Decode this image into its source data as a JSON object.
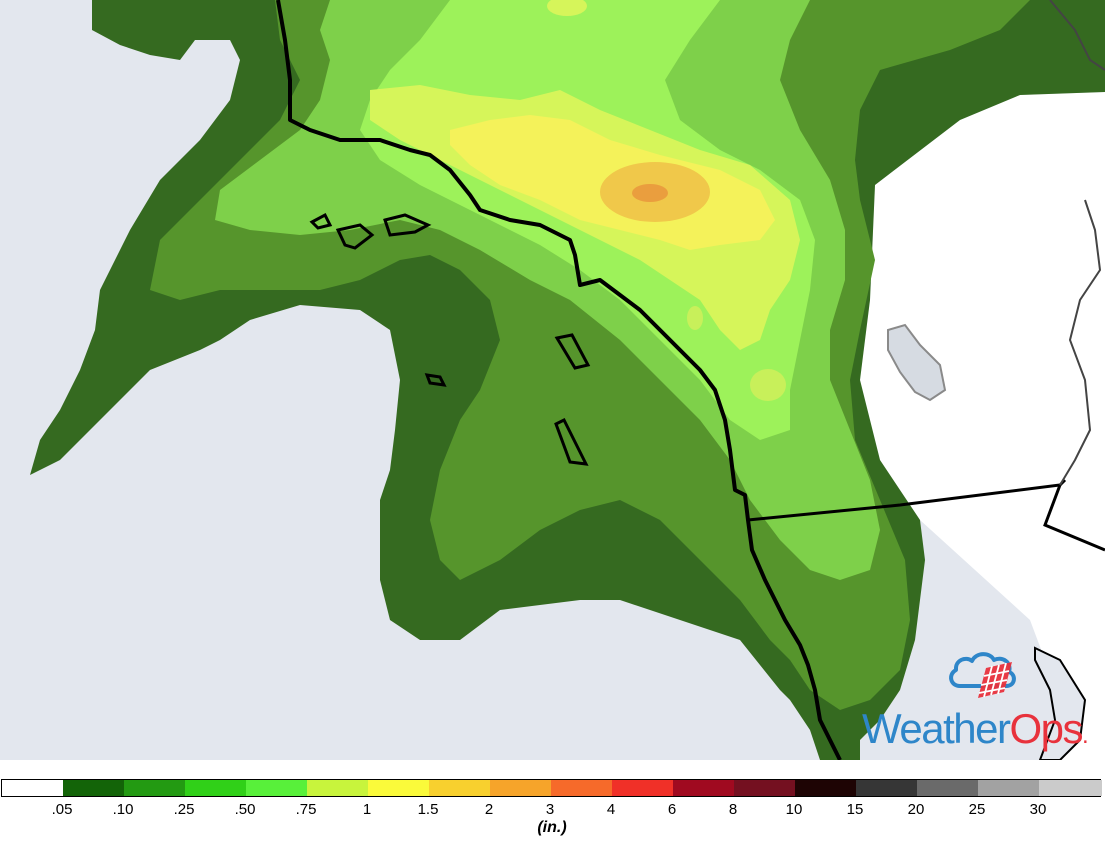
{
  "map": {
    "ocean_color": "#e3e7ee",
    "land_outside_color": "#ffffff",
    "state_border_color": "#000000"
  },
  "logo": {
    "weather": "Weather",
    "ops": "Ops",
    "dot": ".",
    "weather_color": "#2e86c9",
    "ops_color": "#e8323c"
  },
  "legend": {
    "unit": "(in.)",
    "colors": [
      "#ffffff",
      "#136408",
      "#239a12",
      "#30d018",
      "#58f03a",
      "#c8f43c",
      "#fafa3a",
      "#f8d02e",
      "#f6a42a",
      "#f66a2a",
      "#f03028",
      "#a00a20",
      "#741020",
      "#1e0404",
      "#363636",
      "#6a6a6a",
      "#a2a2a2",
      "#cbcbcb"
    ],
    "ticks": [
      ".05",
      ".10",
      ".25",
      ".50",
      ".75",
      "1",
      "1.5",
      "2",
      "3",
      "4",
      "6",
      "8",
      "10",
      "15",
      "20",
      "25",
      "30"
    ]
  }
}
